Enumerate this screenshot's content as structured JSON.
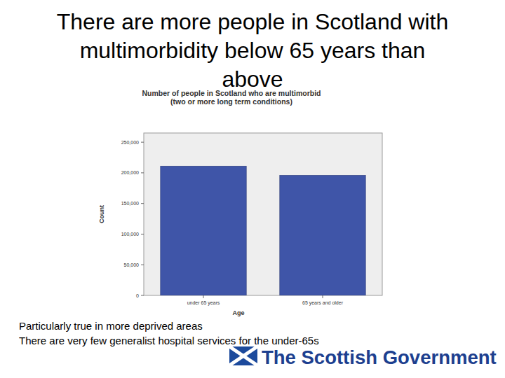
{
  "slide": {
    "title": [
      "There are more people in Scotland with",
      "multimorbidity below 65 years than",
      "above"
    ],
    "notes": [
      "Particularly true in more deprived areas",
      "There are very few generalist hospital services for the under-65s"
    ],
    "logo": "The Scottish Government"
  },
  "chart_data": {
    "type": "bar",
    "title": "Number of people in Scotland who are multimorbid",
    "subtitle": "(two or more long term conditions)",
    "x_label": "Age",
    "y_label": "Count",
    "categories": [
      "under 65 years",
      "65 years and older"
    ],
    "values": [
      211000,
      196000
    ],
    "color": "#3f55a8",
    "ylim": [
      0,
      265000
    ],
    "yticks": [
      0,
      {
        "value": 50000,
        "label": "50,000"
      },
      {
        "value": 100000,
        "label": "100,000"
      },
      {
        "value": 150000,
        "label": "150,000"
      },
      {
        "value": 200000,
        "label": "200,000"
      },
      {
        "value": 250000,
        "label": "250,000"
      }
    ],
    "grid": false
  }
}
